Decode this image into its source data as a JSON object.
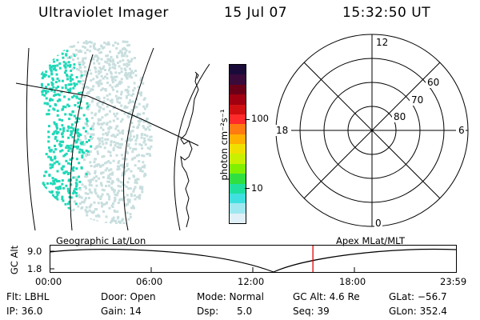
{
  "header": {
    "instrument": "Ultraviolet Imager",
    "date": "15 Jul 07",
    "time": "15:32:50 UT"
  },
  "colorbar": {
    "unit_label": "photon cm⁻²s⁻¹",
    "tick_labels": [
      "100",
      "10"
    ],
    "colors_top_to_bottom": [
      "#1a0a3a",
      "#3a0a3a",
      "#6a0018",
      "#a00010",
      "#d01010",
      "#ff2a2a",
      "#ff7a10",
      "#ffb000",
      "#f0e000",
      "#c8f000",
      "#80f000",
      "#30e040",
      "#20e0a0",
      "#40e0e0",
      "#a0e8f0",
      "#e0f0f8"
    ]
  },
  "polar_plot": {
    "clock_labels": [
      "12",
      "18",
      "6",
      "0"
    ],
    "ring_labels": [
      "60",
      "70",
      "80"
    ]
  },
  "altitude_plot": {
    "left_title": "Geographic Lat/Lon",
    "right_title": "Apex MLat/MLT",
    "ylabel": "GC Alt",
    "ytick_labels": [
      "9.0",
      "1.8"
    ],
    "xtick_labels": [
      "00:00",
      "06:00",
      "12:00",
      "18:00",
      "23:59"
    ],
    "marker_color": "#e00000",
    "marker_time_hours": 15.55
  },
  "status": {
    "filter": "Flt: LBHL",
    "ip": "IP: 36.0",
    "door": "Door: Open",
    "gain": "Gain: 14",
    "mode": "Mode: Normal",
    "dsp": "Dsp:      5.0",
    "gc_alt": "GC Alt: 4.6 Re",
    "seq": "Seq: 39",
    "glat": "GLat: −56.7",
    "glon": "GLon: 352.4"
  },
  "colors": {
    "aurora_dense": "#20d8b8",
    "aurora_light": "#c8dede",
    "line": "#000000"
  }
}
